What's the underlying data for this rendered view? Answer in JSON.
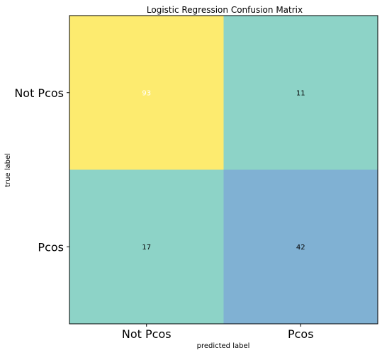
{
  "chart_data": {
    "type": "heatmap",
    "title": "Logistic Regression Confusion Matrix",
    "xlabel": "predicted label",
    "ylabel": "true label",
    "x_categories": [
      "Not Pcos",
      "Pcos"
    ],
    "y_categories": [
      "Not Pcos",
      "Pcos"
    ],
    "values": [
      [
        93,
        11
      ],
      [
        17,
        42
      ]
    ],
    "cell_colors": [
      [
        "#fdeb6f",
        "#8dd3c7"
      ],
      [
        "#8dd3c7",
        "#80b1d3"
      ]
    ],
    "cell_text_colors": [
      [
        "#ffffff",
        "#000000"
      ],
      [
        "#000000",
        "#000000"
      ]
    ],
    "grid": false,
    "legend": "none"
  }
}
